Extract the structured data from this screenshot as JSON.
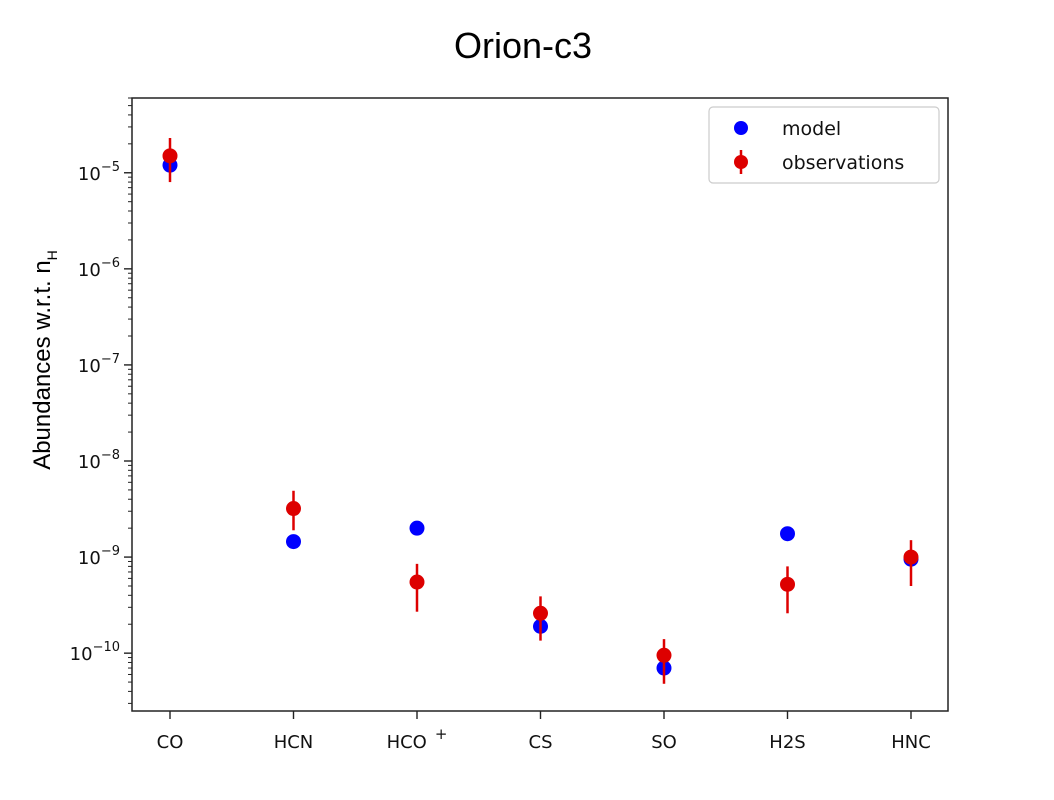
{
  "chart_data": {
    "type": "scatter",
    "title": "Orion-c3",
    "ylabel": "Abundances w.r.t. n",
    "ylabel_subscript": "H",
    "xlabel": "",
    "categories": [
      "CO",
      "HCN",
      "HCO",
      "CS",
      "SO",
      "H2S",
      "HNC"
    ],
    "category_superscripts": [
      "",
      "",
      "+",
      "",
      "",
      "",
      ""
    ],
    "y_scale": "log",
    "ylim": [
      2.5e-11,
      6e-05
    ],
    "y_tick_labels": [
      {
        "value": 1e-10,
        "base": "10",
        "exp": "−10"
      },
      {
        "value": 1e-09,
        "base": "10",
        "exp": "−9"
      },
      {
        "value": 1e-08,
        "base": "10",
        "exp": "−8"
      },
      {
        "value": 1e-07,
        "base": "10",
        "exp": "−7"
      },
      {
        "value": 1e-06,
        "base": "10",
        "exp": "−6"
      },
      {
        "value": 1e-05,
        "base": "10",
        "exp": "−5"
      }
    ],
    "grid": false,
    "legend_position": "top-right",
    "series": [
      {
        "name": "model",
        "color": "#0000ff",
        "values": [
          1.2e-05,
          1.45e-09,
          2e-09,
          1.9e-10,
          7e-11,
          1.75e-09,
          9.5e-10
        ]
      },
      {
        "name": "observations",
        "color": "#dd0000",
        "values": [
          1.5e-05,
          3.2e-09,
          5.5e-10,
          2.6e-10,
          9.5e-11,
          5.2e-10,
          1e-09
        ],
        "error_low": [
          8e-06,
          1.9e-09,
          2.7e-10,
          1.35e-10,
          4.8e-11,
          2.6e-10,
          5e-10
        ],
        "error_high": [
          2.3e-05,
          4.9e-09,
          8.5e-10,
          3.9e-10,
          1.4e-10,
          8e-10,
          1.5e-09
        ]
      }
    ]
  }
}
